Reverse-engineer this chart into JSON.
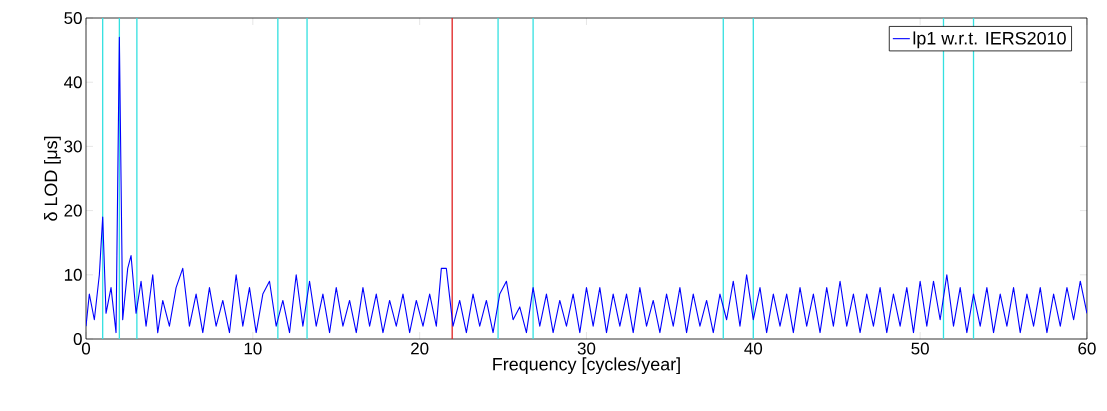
{
  "chart_data": {
    "type": "line",
    "xlabel": "Frequency [cycles/year]",
    "ylabel": "δ LOD [μs]",
    "xlim": [
      0,
      60
    ],
    "ylim": [
      0,
      50
    ],
    "xticks": [
      0,
      10,
      20,
      30,
      40,
      50,
      60
    ],
    "yticks": [
      0,
      10,
      20,
      30,
      40,
      50
    ],
    "grid": false,
    "legend": "top right",
    "line_style": "solid",
    "marker": "none",
    "ref_lines": [
      {
        "axis": "x",
        "value": 1.0,
        "color": "#33e0e0"
      },
      {
        "axis": "x",
        "value": 2.0,
        "color": "#33e0e0"
      },
      {
        "axis": "x",
        "value": 3.05,
        "color": "#33e0e0"
      },
      {
        "axis": "x",
        "value": 11.5,
        "color": "#33e0e0"
      },
      {
        "axis": "x",
        "value": 13.25,
        "color": "#33e0e0"
      },
      {
        "axis": "x",
        "value": 21.95,
        "color": "#e02020"
      },
      {
        "axis": "x",
        "value": 24.7,
        "color": "#33e0e0"
      },
      {
        "axis": "x",
        "value": 26.8,
        "color": "#33e0e0"
      },
      {
        "axis": "x",
        "value": 38.2,
        "color": "#33e0e0"
      },
      {
        "axis": "x",
        "value": 40.0,
        "color": "#33e0e0"
      },
      {
        "axis": "x",
        "value": 51.4,
        "color": "#33e0e0"
      },
      {
        "axis": "x",
        "value": 53.2,
        "color": "#33e0e0"
      }
    ],
    "series": [
      {
        "name": "lp1 w.r.t. IERS2010",
        "color": "#0000ff",
        "x": [
          0,
          0.2,
          0.5,
          0.8,
          1.0,
          1.2,
          1.5,
          1.8,
          2.0,
          2.2,
          2.5,
          2.7,
          3.0,
          3.3,
          3.6,
          4.0,
          4.3,
          4.6,
          5.0,
          5.4,
          5.8,
          6.2,
          6.6,
          7.0,
          7.4,
          7.8,
          8.2,
          8.6,
          9.0,
          9.4,
          9.8,
          10.2,
          10.6,
          11.0,
          11.4,
          11.8,
          12.2,
          12.6,
          13.0,
          13.4,
          13.8,
          14.2,
          14.6,
          15.0,
          15.4,
          15.8,
          16.2,
          16.6,
          17.0,
          17.4,
          17.8,
          18.2,
          18.6,
          19.0,
          19.4,
          19.8,
          20.2,
          20.6,
          21.0,
          21.3,
          21.6,
          22.0,
          22.4,
          22.8,
          23.2,
          23.6,
          24.0,
          24.4,
          24.8,
          25.2,
          25.6,
          26.0,
          26.4,
          26.8,
          27.2,
          27.6,
          28.0,
          28.4,
          28.8,
          29.2,
          29.6,
          30.0,
          30.4,
          30.8,
          31.2,
          31.6,
          32.0,
          32.4,
          32.8,
          33.2,
          33.6,
          34.0,
          34.4,
          34.8,
          35.2,
          35.6,
          36.0,
          36.4,
          36.8,
          37.2,
          37.6,
          38.0,
          38.4,
          38.8,
          39.2,
          39.6,
          40.0,
          40.4,
          40.8,
          41.2,
          41.6,
          42.0,
          42.4,
          42.8,
          43.2,
          43.6,
          44.0,
          44.4,
          44.8,
          45.2,
          45.6,
          46.0,
          46.4,
          46.8,
          47.2,
          47.6,
          48.0,
          48.4,
          48.8,
          49.2,
          49.6,
          50.0,
          50.4,
          50.8,
          51.2,
          51.6,
          52.0,
          52.4,
          52.8,
          53.2,
          53.6,
          54.0,
          54.4,
          54.8,
          55.2,
          55.6,
          56.0,
          56.4,
          56.8,
          57.2,
          57.6,
          58.0,
          58.4,
          58.8,
          59.2,
          59.6,
          60.0
        ],
        "values": [
          2,
          7,
          3,
          10,
          19,
          4,
          8,
          1,
          47,
          3,
          11,
          13,
          4,
          9,
          2,
          10,
          1,
          6,
          2,
          8,
          11,
          2,
          7,
          1,
          8,
          2,
          6,
          1,
          10,
          2,
          8,
          1,
          7,
          9,
          2,
          6,
          1,
          10,
          2,
          9,
          2,
          7,
          1,
          8,
          2,
          6,
          1,
          8,
          2,
          7,
          1,
          6,
          2,
          7,
          1,
          6,
          2,
          7,
          2,
          11,
          11,
          2,
          6,
          1,
          7,
          2,
          6,
          1,
          7,
          9,
          3,
          5,
          1,
          8,
          2,
          7,
          1,
          6,
          2,
          7,
          1,
          8,
          2,
          8,
          1,
          7,
          2,
          7,
          1,
          8,
          2,
          6,
          1,
          7,
          2,
          8,
          1,
          7,
          2,
          6,
          1,
          7,
          3,
          9,
          2,
          10,
          3,
          8,
          1,
          7,
          2,
          7,
          1,
          8,
          2,
          7,
          1,
          8,
          2,
          9,
          2,
          7,
          1,
          7,
          2,
          8,
          1,
          7,
          2,
          8,
          1,
          9,
          2,
          9,
          3,
          10,
          2,
          8,
          1,
          7,
          2,
          8,
          1,
          7,
          2,
          8,
          1,
          7,
          2,
          8,
          1,
          7,
          2,
          8,
          3,
          9,
          4
        ]
      }
    ]
  }
}
